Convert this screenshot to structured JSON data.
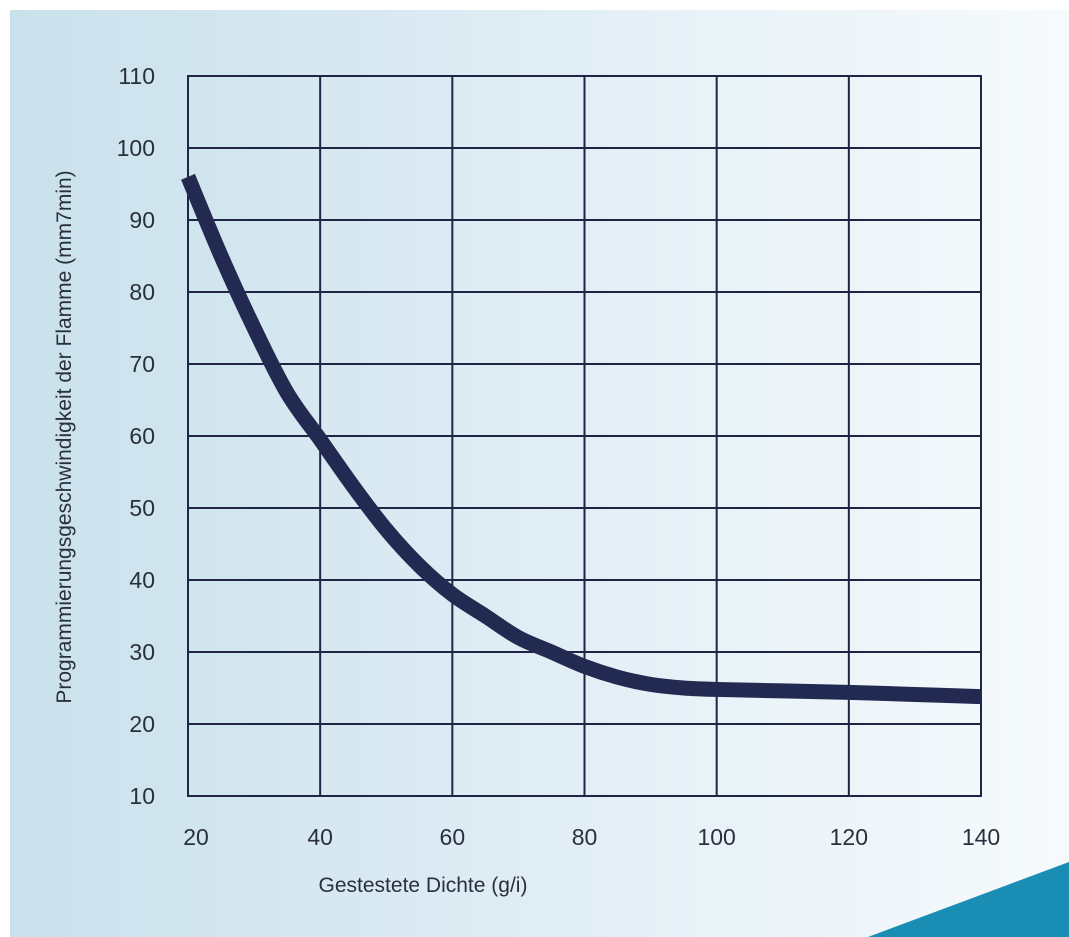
{
  "chart_data": {
    "type": "line",
    "xlabel": "Gestestete Dichte (g/i)",
    "ylabel": "Programmierungsgeschwindigkeit der Flamme (mm7min)",
    "xlim": [
      20,
      140
    ],
    "ylim": [
      10,
      110
    ],
    "x_ticks": [
      "20",
      "40",
      "60",
      "80",
      "100",
      "120",
      "140"
    ],
    "y_ticks": [
      "10",
      "20",
      "30",
      "40",
      "50",
      "60",
      "70",
      "80",
      "90",
      "100",
      "110"
    ],
    "grid": true,
    "series": [
      {
        "color": "#232a52",
        "x": [
          20,
          25,
          30,
          35,
          40,
          45,
          50,
          55,
          60,
          65,
          70,
          75,
          80,
          85,
          90,
          95,
          100,
          110,
          120,
          130,
          140
        ],
        "y": [
          96,
          85,
          75,
          66,
          59.5,
          53,
          47,
          42,
          38,
          35,
          32,
          30,
          28,
          26.5,
          25.5,
          25,
          24.8,
          24.6,
          24.4,
          24.1,
          23.8
        ]
      }
    ]
  },
  "decor": {
    "corner_accent_color": "#1a8db4",
    "panel_gradient": [
      "#c9e1ec",
      "#f6fafc"
    ]
  }
}
